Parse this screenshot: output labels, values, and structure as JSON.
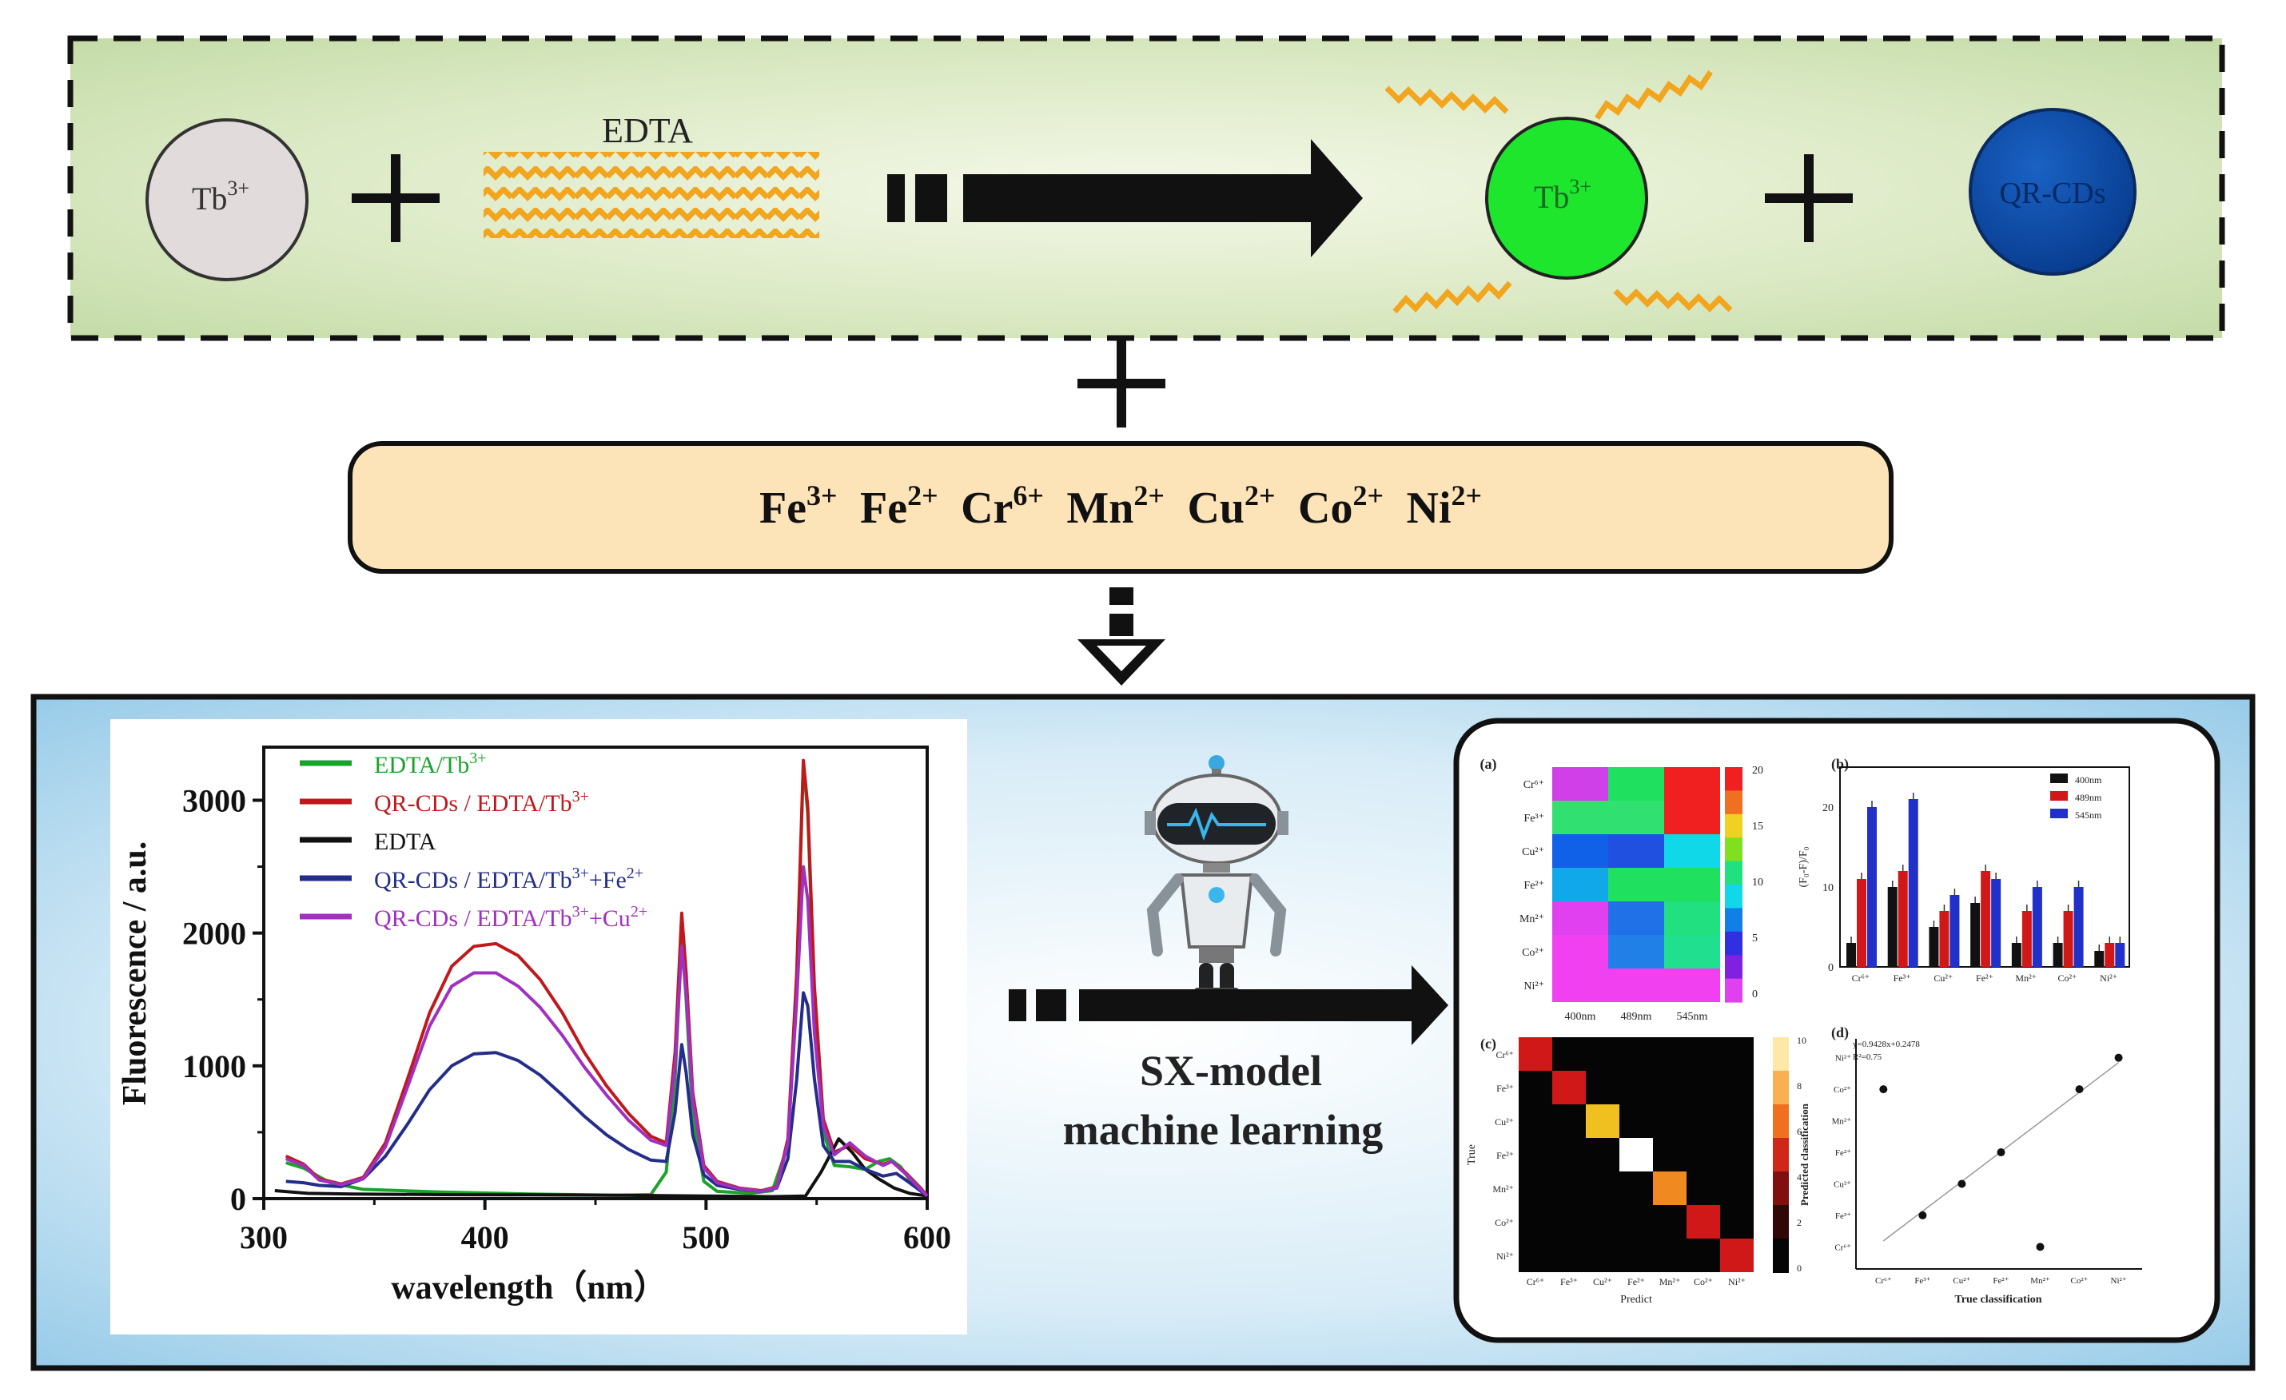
{
  "top_panel": {
    "tb_label": "Tb",
    "tb_sup": "3+",
    "edta_label": "EDTA",
    "complex_label": "Tb",
    "complex_sup": "3+",
    "cds_label": "QR-CDs"
  },
  "ions": [
    {
      "base": "Fe",
      "sup": "3+"
    },
    {
      "base": "Fe",
      "sup": "2+"
    },
    {
      "base": "Cr",
      "sup": "6+"
    },
    {
      "base": "Mn",
      "sup": "2+"
    },
    {
      "base": "Cu",
      "sup": "2+"
    },
    {
      "base": "Co",
      "sup": "2+"
    },
    {
      "base": "Ni",
      "sup": "2+"
    }
  ],
  "model": {
    "line1": "SX-model",
    "line2": "machine learning"
  },
  "colors": {
    "green": "#1aa32a",
    "red": "#c0181c",
    "black": "#111111",
    "navy": "#242e8a",
    "purple": "#a030c0",
    "tb_circle": "#e2dbdc",
    "complex_circle": "#1de62d",
    "cds_circle": "#0a4aa8",
    "ion_box": "#fde3b8"
  },
  "chart_data": {
    "type": "line",
    "xlabel": "wavelength（nm）",
    "ylabel": "Fluorescence / a.u.",
    "xlim": [
      300,
      600
    ],
    "ylim": [
      0,
      3400
    ],
    "xticks": [
      "300",
      "400",
      "500",
      "600"
    ],
    "yticks": [
      "0",
      "1000",
      "2000",
      "3000"
    ],
    "legend_position": "top-left",
    "series": [
      {
        "name": "EDTA/Tb3+",
        "legend_base": "EDTA/Tb",
        "legend_sup": "3+",
        "color": "#1aa32a",
        "points": [
          [
            310,
            270
          ],
          [
            318,
            230
          ],
          [
            330,
            120
          ],
          [
            345,
            70
          ],
          [
            380,
            50
          ],
          [
            420,
            35
          ],
          [
            460,
            25
          ],
          [
            475,
            30
          ],
          [
            482,
            200
          ],
          [
            486,
            900
          ],
          [
            489,
            1980
          ],
          [
            491,
            1500
          ],
          [
            494,
            600
          ],
          [
            499,
            130
          ],
          [
            505,
            55
          ],
          [
            520,
            40
          ],
          [
            530,
            60
          ],
          [
            537,
            400
          ],
          [
            541,
            1600
          ],
          [
            544,
            3280
          ],
          [
            546,
            2900
          ],
          [
            549,
            1500
          ],
          [
            553,
            500
          ],
          [
            558,
            250
          ],
          [
            565,
            240
          ],
          [
            572,
            220
          ],
          [
            578,
            280
          ],
          [
            583,
            300
          ],
          [
            588,
            240
          ],
          [
            593,
            120
          ],
          [
            600,
            20
          ]
        ]
      },
      {
        "name": "QR-CDs / EDTA/Tb3+",
        "legend_base": "QR-CDs / EDTA/Tb",
        "legend_sup": "3+",
        "color": "#c0181c",
        "points": [
          [
            310,
            320
          ],
          [
            318,
            260
          ],
          [
            325,
            150
          ],
          [
            335,
            110
          ],
          [
            345,
            160
          ],
          [
            355,
            420
          ],
          [
            365,
            900
          ],
          [
            375,
            1400
          ],
          [
            385,
            1750
          ],
          [
            395,
            1900
          ],
          [
            405,
            1920
          ],
          [
            415,
            1830
          ],
          [
            425,
            1650
          ],
          [
            435,
            1400
          ],
          [
            445,
            1100
          ],
          [
            455,
            850
          ],
          [
            465,
            640
          ],
          [
            475,
            470
          ],
          [
            482,
            420
          ],
          [
            486,
            1100
          ],
          [
            489,
            2150
          ],
          [
            491,
            1700
          ],
          [
            494,
            800
          ],
          [
            499,
            250
          ],
          [
            505,
            130
          ],
          [
            515,
            80
          ],
          [
            525,
            60
          ],
          [
            532,
            90
          ],
          [
            537,
            450
          ],
          [
            541,
            1700
          ],
          [
            544,
            3300
          ],
          [
            546,
            2950
          ],
          [
            549,
            1600
          ],
          [
            553,
            600
          ],
          [
            558,
            350
          ],
          [
            565,
            400
          ],
          [
            572,
            300
          ],
          [
            580,
            260
          ],
          [
            584,
            280
          ],
          [
            590,
            200
          ],
          [
            597,
            80
          ],
          [
            600,
            20
          ]
        ]
      },
      {
        "name": "EDTA",
        "legend_base": "EDTA",
        "legend_sup": "",
        "color": "#111111",
        "points": [
          [
            305,
            60
          ],
          [
            320,
            40
          ],
          [
            340,
            35
          ],
          [
            380,
            30
          ],
          [
            420,
            28
          ],
          [
            460,
            25
          ],
          [
            500,
            20
          ],
          [
            530,
            15
          ],
          [
            545,
            20
          ],
          [
            552,
            200
          ],
          [
            560,
            450
          ],
          [
            566,
            350
          ],
          [
            572,
            220
          ],
          [
            578,
            150
          ],
          [
            585,
            80
          ],
          [
            592,
            40
          ],
          [
            600,
            20
          ]
        ]
      },
      {
        "name": "QR-CDs / EDTA/Tb3+ + Fe2+",
        "legend_base": "QR-CDs / EDTA/Tb",
        "legend_sup": "3+",
        "legend_tail": "+Fe",
        "legend_tail_sup": "2+",
        "color": "#242e8a",
        "points": [
          [
            310,
            130
          ],
          [
            318,
            120
          ],
          [
            325,
            100
          ],
          [
            335,
            90
          ],
          [
            345,
            150
          ],
          [
            355,
            320
          ],
          [
            365,
            560
          ],
          [
            375,
            820
          ],
          [
            385,
            1000
          ],
          [
            395,
            1090
          ],
          [
            405,
            1100
          ],
          [
            415,
            1040
          ],
          [
            425,
            930
          ],
          [
            435,
            780
          ],
          [
            445,
            620
          ],
          [
            455,
            480
          ],
          [
            465,
            370
          ],
          [
            475,
            290
          ],
          [
            482,
            280
          ],
          [
            486,
            650
          ],
          [
            489,
            1160
          ],
          [
            491,
            950
          ],
          [
            494,
            480
          ],
          [
            499,
            180
          ],
          [
            505,
            100
          ],
          [
            515,
            70
          ],
          [
            525,
            55
          ],
          [
            532,
            80
          ],
          [
            537,
            300
          ],
          [
            541,
            900
          ],
          [
            544,
            1550
          ],
          [
            546,
            1450
          ],
          [
            549,
            900
          ],
          [
            553,
            400
          ],
          [
            558,
            280
          ],
          [
            565,
            280
          ],
          [
            572,
            220
          ],
          [
            580,
            170
          ],
          [
            586,
            190
          ],
          [
            592,
            120
          ],
          [
            600,
            20
          ]
        ]
      },
      {
        "name": "QR-CDs / EDTA/Tb3+ + Cu2+",
        "legend_base": "QR-CDs / EDTA/Tb",
        "legend_sup": "3+",
        "legend_tail": "+Cu",
        "legend_tail_sup": "2+",
        "color": "#a030c0",
        "points": [
          [
            310,
            300
          ],
          [
            318,
            250
          ],
          [
            325,
            140
          ],
          [
            335,
            105
          ],
          [
            345,
            150
          ],
          [
            355,
            390
          ],
          [
            365,
            840
          ],
          [
            375,
            1300
          ],
          [
            385,
            1600
          ],
          [
            395,
            1700
          ],
          [
            405,
            1700
          ],
          [
            415,
            1600
          ],
          [
            425,
            1440
          ],
          [
            435,
            1230
          ],
          [
            445,
            990
          ],
          [
            455,
            780
          ],
          [
            465,
            590
          ],
          [
            475,
            440
          ],
          [
            482,
            400
          ],
          [
            486,
            1000
          ],
          [
            489,
            1900
          ],
          [
            491,
            1550
          ],
          [
            494,
            750
          ],
          [
            499,
            230
          ],
          [
            505,
            120
          ],
          [
            515,
            75
          ],
          [
            525,
            55
          ],
          [
            532,
            85
          ],
          [
            537,
            420
          ],
          [
            541,
            1500
          ],
          [
            544,
            2500
          ],
          [
            546,
            2250
          ],
          [
            549,
            1250
          ],
          [
            553,
            550
          ],
          [
            558,
            330
          ],
          [
            565,
            420
          ],
          [
            572,
            320
          ],
          [
            580,
            250
          ],
          [
            584,
            280
          ],
          [
            590,
            190
          ],
          [
            597,
            70
          ],
          [
            600,
            20
          ]
        ]
      }
    ]
  },
  "mini": {
    "a": {
      "tag": "(a)",
      "rows": [
        "Cr⁶⁺",
        "Fe³⁺",
        "Cu²⁺",
        "Fe²⁺",
        "Mn²⁺",
        "Co²⁺",
        "Ni²⁺"
      ],
      "cols": [
        "400nm",
        "489nm",
        "545nm"
      ],
      "cbar_ticks": [
        "20",
        "15",
        "10",
        "5",
        "0"
      ]
    },
    "b": {
      "tag": "(b)",
      "ylabel": "(F₀-F)/F₀",
      "yticks": [
        "0",
        "10",
        "20"
      ],
      "legend": [
        "400nm",
        "489nm",
        "545nm"
      ],
      "categories": [
        "Cr⁶⁺",
        "Fe³⁺",
        "Cu²⁺",
        "Fe²⁺",
        "Mn²⁺",
        "Co²⁺",
        "Ni²⁺"
      ],
      "values": [
        [
          3,
          11,
          20
        ],
        [
          10,
          12,
          21
        ],
        [
          5,
          7,
          9
        ],
        [
          8,
          12,
          11
        ],
        [
          3,
          7,
          10
        ],
        [
          3,
          7,
          10
        ],
        [
          2,
          3,
          3
        ]
      ]
    },
    "c": {
      "tag": "(c)",
      "ylabel": "True",
      "xlabel": "Predict",
      "labels": [
        "Cr⁶⁺",
        "Fe³⁺",
        "Cu²⁺",
        "Fe²⁺",
        "Mn²⁺",
        "Co²⁺",
        "Ni²⁺"
      ],
      "cbar_ticks": [
        "10",
        "8",
        "6",
        "4",
        "2",
        "0"
      ]
    },
    "d": {
      "tag": "(d)",
      "eq1": "y=0.9428x+0.2478",
      "eq2": "R²=0.75",
      "ylabel": "Predicted classification",
      "xlabel": "True classification",
      "categories": [
        "Cr⁶⁺",
        "Fe³⁺",
        "Cu²⁺",
        "Fe²⁺",
        "Mn²⁺",
        "Co²⁺",
        "Ni²⁺"
      ],
      "points": [
        [
          1,
          6
        ],
        [
          2,
          2
        ],
        [
          3,
          3
        ],
        [
          4,
          4
        ],
        [
          5,
          1
        ],
        [
          6,
          6
        ],
        [
          7,
          7
        ]
      ]
    }
  }
}
